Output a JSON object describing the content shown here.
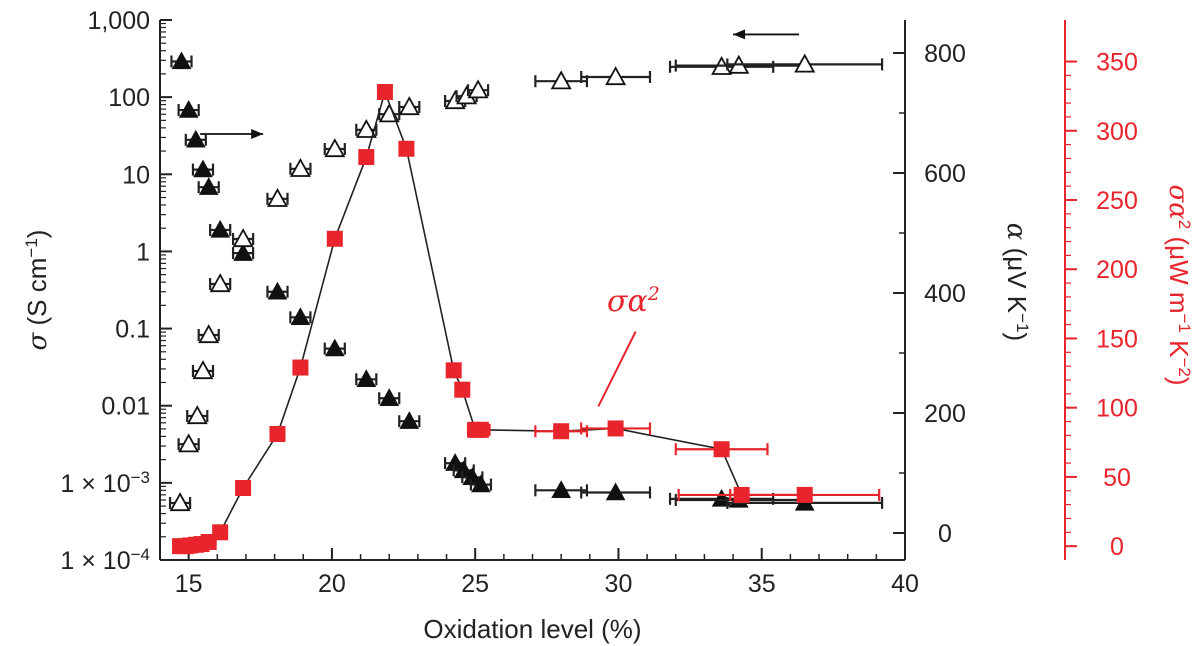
{
  "chart_data": {
    "type": "scatter",
    "title": "",
    "xlabel": "Oxidation level (%)",
    "xlim": [
      14,
      40
    ],
    "xticks": [
      "15",
      "20",
      "25",
      "30",
      "35",
      "40"
    ],
    "colors": {
      "axis": "#222222",
      "red": "#e8242c",
      "black": "#111111"
    },
    "axes": {
      "left": {
        "label_prefix": "σ",
        "label_rest": " (S cm",
        "label_sup": "−1",
        "label_close": ")",
        "scale": "log",
        "ylim": [
          0.0001,
          1000
        ],
        "ticks": [
          {
            "value": 1000,
            "label": "1,000"
          },
          {
            "value": 100,
            "label": "100"
          },
          {
            "value": 10,
            "label": "10"
          },
          {
            "value": 1,
            "label": "1"
          },
          {
            "value": 0.1,
            "label": "0.1"
          },
          {
            "value": 0.01,
            "label": "0.01"
          },
          {
            "value": 0.001,
            "label": "1 × 10",
            "sup": "−3"
          },
          {
            "value": 0.0001,
            "label": "1 × 10",
            "sup": "−4"
          }
        ]
      },
      "right1": {
        "label_prefix": "α",
        "label_rest": " (μV K",
        "label_sup": "−1",
        "label_close": ")",
        "ylim": [
          -45,
          855
        ],
        "ticks": [
          "0",
          "200",
          "400",
          "600",
          "800"
        ]
      },
      "right2": {
        "label_prefix": "σα",
        "label_sup1": "2",
        "label_rest": " (μW m",
        "label_sup2": "−1",
        "label_mid": " K",
        "label_sup3": "−2",
        "label_close": ")",
        "ylim": [
          -10,
          380
        ],
        "ticks": [
          "0",
          "50",
          "100",
          "150",
          "200",
          "250",
          "300",
          "350"
        ]
      }
    },
    "annotations": {
      "power_factor_label": "σα",
      "power_factor_sup": "2"
    },
    "series": [
      {
        "marker": "triangle-filled",
        "axis": "left",
        "points": [
          {
            "x": 14.75,
            "y": 290,
            "xerr": 0.35
          },
          {
            "x": 15.0,
            "y": 68,
            "xerr": 0.35
          },
          {
            "x": 15.25,
            "y": 28,
            "xerr": 0.35
          },
          {
            "x": 15.5,
            "y": 11.5,
            "xerr": 0.35
          },
          {
            "x": 15.7,
            "y": 6.8,
            "xerr": 0.35
          },
          {
            "x": 16.1,
            "y": 1.9,
            "xerr": 0.35
          },
          {
            "x": 16.9,
            "y": 0.95,
            "xerr": 0.35
          },
          {
            "x": 18.1,
            "y": 0.3,
            "xerr": 0.35
          },
          {
            "x": 18.9,
            "y": 0.14,
            "xerr": 0.35
          },
          {
            "x": 20.1,
            "y": 0.055,
            "xerr": 0.35
          },
          {
            "x": 21.2,
            "y": 0.022,
            "xerr": 0.35
          },
          {
            "x": 22.0,
            "y": 0.0125,
            "xerr": 0.35
          },
          {
            "x": 22.7,
            "y": 0.0063,
            "xerr": 0.35
          },
          {
            "x": 24.3,
            "y": 0.0018,
            "xerr": 0.35
          },
          {
            "x": 24.6,
            "y": 0.00145,
            "xerr": 0.35
          },
          {
            "x": 24.9,
            "y": 0.00118,
            "xerr": 0.35
          },
          {
            "x": 25.2,
            "y": 0.00095,
            "xerr": 0.35
          },
          {
            "x": 28.0,
            "y": 0.0008,
            "xerr": 0.9
          },
          {
            "x": 29.9,
            "y": 0.00075,
            "xerr": 1.2
          },
          {
            "x": 33.6,
            "y": 0.00062,
            "xerr": 1.8
          },
          {
            "x": 34.2,
            "y": 0.0006,
            "xerr": 2.2
          },
          {
            "x": 36.5,
            "y": 0.00055,
            "xerr": 2.7
          }
        ]
      },
      {
        "marker": "triangle-open",
        "axis": "right1",
        "points": [
          {
            "x": 14.7,
            "y": 50,
            "xerr": 0.35
          },
          {
            "x": 15.0,
            "y": 148,
            "xerr": 0.35
          },
          {
            "x": 15.3,
            "y": 195,
            "xerr": 0.35
          },
          {
            "x": 15.5,
            "y": 270,
            "xerr": 0.35
          },
          {
            "x": 15.7,
            "y": 330,
            "xerr": 0.35
          },
          {
            "x": 16.1,
            "y": 415,
            "xerr": 0.35
          },
          {
            "x": 16.9,
            "y": 490,
            "xerr": 0.35
          },
          {
            "x": 18.1,
            "y": 557,
            "xerr": 0.35
          },
          {
            "x": 18.9,
            "y": 607,
            "xerr": 0.35
          },
          {
            "x": 20.1,
            "y": 640,
            "xerr": 0.35
          },
          {
            "x": 21.2,
            "y": 672,
            "xerr": 0.35
          },
          {
            "x": 22.0,
            "y": 698,
            "xerr": 0.35
          },
          {
            "x": 22.7,
            "y": 710,
            "xerr": 0.35
          },
          {
            "x": 24.3,
            "y": 720,
            "xerr": 0.35
          },
          {
            "x": 24.7,
            "y": 728,
            "xerr": 0.35
          },
          {
            "x": 25.1,
            "y": 738,
            "xerr": 0.35
          },
          {
            "x": 28.0,
            "y": 753,
            "xerr": 0.9
          },
          {
            "x": 29.9,
            "y": 760,
            "xerr": 1.2
          },
          {
            "x": 33.6,
            "y": 777,
            "xerr": 1.8
          },
          {
            "x": 34.2,
            "y": 779,
            "xerr": 2.2
          },
          {
            "x": 36.5,
            "y": 781,
            "xerr": 2.7
          }
        ]
      },
      {
        "marker": "square-red",
        "axis": "right2",
        "line": true,
        "points": [
          {
            "x": 14.7,
            "y": 0,
            "xerr": 0.2
          },
          {
            "x": 14.9,
            "y": 0,
            "xerr": 0.2
          },
          {
            "x": 15.05,
            "y": 0.5,
            "xerr": 0.2
          },
          {
            "x": 15.25,
            "y": 1,
            "xerr": 0.2
          },
          {
            "x": 15.45,
            "y": 1.5,
            "xerr": 0.2
          },
          {
            "x": 15.7,
            "y": 3,
            "xerr": 0.2
          },
          {
            "x": 16.1,
            "y": 10,
            "xerr": 0.2
          },
          {
            "x": 16.9,
            "y": 42,
            "xerr": 0.2
          },
          {
            "x": 18.1,
            "y": 81,
            "xerr": 0.2
          },
          {
            "x": 18.9,
            "y": 129,
            "xerr": 0.2
          },
          {
            "x": 20.1,
            "y": 222,
            "xerr": 0.2
          },
          {
            "x": 21.2,
            "y": 281,
            "xerr": 0.2
          },
          {
            "x": 21.85,
            "y": 328,
            "xerr": 0.2
          },
          {
            "x": 22.6,
            "y": 287,
            "xerr": 0.2
          },
          {
            "x": 24.25,
            "y": 127,
            "xerr": 0.2
          },
          {
            "x": 24.55,
            "y": 113,
            "xerr": 0.2
          },
          {
            "x": 25.0,
            "y": 84,
            "xerr": 0.25
          },
          {
            "x": 25.2,
            "y": 84,
            "xerr": 0.3
          },
          {
            "x": 28.0,
            "y": 83,
            "xerr": 0.9
          },
          {
            "x": 29.9,
            "y": 85,
            "xerr": 1.2
          },
          {
            "x": 33.6,
            "y": 70,
            "xerr": 1.6
          },
          {
            "x": 34.3,
            "y": 37,
            "xerr": 2.2
          },
          {
            "x": 36.5,
            "y": 37,
            "xerr": 2.6
          }
        ]
      }
    ]
  }
}
